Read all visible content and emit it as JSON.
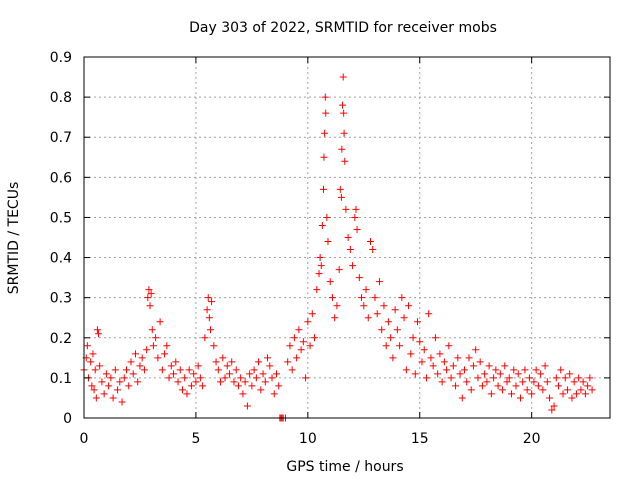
{
  "chart_data": {
    "type": "scatter",
    "title": "Day 303 of 2022, SRMTID for receiver mobs",
    "xlabel": "GPS time / hours",
    "ylabel": "SRMTID / TECUs",
    "xlim": [
      0,
      23.5
    ],
    "ylim": [
      0,
      0.9
    ],
    "grid": true,
    "marker": "+",
    "color": "#ff0000",
    "xticks": [
      {
        "value": 0,
        "label": "0"
      },
      {
        "value": 5,
        "label": "5"
      },
      {
        "value": 10,
        "label": "10"
      },
      {
        "value": 15,
        "label": "15"
      },
      {
        "value": 20,
        "label": "20"
      }
    ],
    "yticks": [
      {
        "value": 0,
        "label": "0"
      },
      {
        "value": 0.1,
        "label": "0.1"
      },
      {
        "value": 0.2,
        "label": "0.2"
      },
      {
        "value": 0.3,
        "label": "0.3"
      },
      {
        "value": 0.4,
        "label": "0.4"
      },
      {
        "value": 0.5,
        "label": "0.5"
      },
      {
        "value": 0.6,
        "label": "0.6"
      },
      {
        "value": 0.7,
        "label": "0.7"
      },
      {
        "value": 0.8,
        "label": "0.8"
      },
      {
        "value": 0.9,
        "label": "0.9"
      }
    ],
    "points": [
      [
        0.0,
        0.12
      ],
      [
        0.1,
        0.15
      ],
      [
        0.15,
        0.18
      ],
      [
        0.2,
        0.1
      ],
      [
        0.3,
        0.14
      ],
      [
        0.35,
        0.08
      ],
      [
        0.4,
        0.16
      ],
      [
        0.45,
        0.07
      ],
      [
        0.5,
        0.12
      ],
      [
        0.55,
        0.05
      ],
      [
        0.6,
        0.22
      ],
      [
        0.65,
        0.21
      ],
      [
        0.7,
        0.13
      ],
      [
        0.8,
        0.09
      ],
      [
        0.9,
        0.06
      ],
      [
        1.0,
        0.11
      ],
      [
        1.1,
        0.08
      ],
      [
        1.2,
        0.1
      ],
      [
        1.3,
        0.05
      ],
      [
        1.4,
        0.12
      ],
      [
        1.5,
        0.07
      ],
      [
        1.6,
        0.09
      ],
      [
        1.7,
        0.04
      ],
      [
        1.8,
        0.1
      ],
      [
        1.9,
        0.12
      ],
      [
        2.0,
        0.08
      ],
      [
        2.1,
        0.14
      ],
      [
        2.2,
        0.11
      ],
      [
        2.3,
        0.16
      ],
      [
        2.4,
        0.09
      ],
      [
        2.5,
        0.13
      ],
      [
        2.6,
        0.15
      ],
      [
        2.7,
        0.12
      ],
      [
        2.8,
        0.17
      ],
      [
        2.85,
        0.3
      ],
      [
        2.9,
        0.32
      ],
      [
        2.95,
        0.28
      ],
      [
        3.0,
        0.31
      ],
      [
        3.05,
        0.22
      ],
      [
        3.1,
        0.18
      ],
      [
        3.2,
        0.2
      ],
      [
        3.3,
        0.15
      ],
      [
        3.4,
        0.24
      ],
      [
        3.5,
        0.12
      ],
      [
        3.6,
        0.16
      ],
      [
        3.7,
        0.18
      ],
      [
        3.8,
        0.1
      ],
      [
        3.9,
        0.13
      ],
      [
        4.0,
        0.11
      ],
      [
        4.1,
        0.14
      ],
      [
        4.2,
        0.09
      ],
      [
        4.3,
        0.12
      ],
      [
        4.4,
        0.07
      ],
      [
        4.5,
        0.1
      ],
      [
        4.6,
        0.06
      ],
      [
        4.7,
        0.12
      ],
      [
        4.8,
        0.08
      ],
      [
        4.9,
        0.11
      ],
      [
        5.0,
        0.09
      ],
      [
        5.1,
        0.13
      ],
      [
        5.2,
        0.1
      ],
      [
        5.3,
        0.08
      ],
      [
        5.4,
        0.2
      ],
      [
        5.5,
        0.27
      ],
      [
        5.55,
        0.3
      ],
      [
        5.6,
        0.25
      ],
      [
        5.65,
        0.22
      ],
      [
        5.7,
        0.29
      ],
      [
        5.8,
        0.18
      ],
      [
        5.9,
        0.14
      ],
      [
        6.0,
        0.12
      ],
      [
        6.1,
        0.09
      ],
      [
        6.2,
        0.15
      ],
      [
        6.3,
        0.1
      ],
      [
        6.4,
        0.13
      ],
      [
        6.5,
        0.11
      ],
      [
        6.6,
        0.14
      ],
      [
        6.7,
        0.09
      ],
      [
        6.8,
        0.12
      ],
      [
        6.9,
        0.08
      ],
      [
        7.0,
        0.1
      ],
      [
        7.1,
        0.06
      ],
      [
        7.2,
        0.09
      ],
      [
        7.3,
        0.03
      ],
      [
        7.4,
        0.11
      ],
      [
        7.5,
        0.08
      ],
      [
        7.6,
        0.12
      ],
      [
        7.7,
        0.1
      ],
      [
        7.8,
        0.14
      ],
      [
        7.9,
        0.07
      ],
      [
        8.0,
        0.11
      ],
      [
        8.1,
        0.09
      ],
      [
        8.2,
        0.15
      ],
      [
        8.3,
        0.13
      ],
      [
        8.4,
        0.1
      ],
      [
        8.5,
        0.06
      ],
      [
        8.6,
        0.11
      ],
      [
        8.7,
        0.08
      ],
      [
        8.75,
        0.0
      ],
      [
        8.8,
        0.0
      ],
      [
        8.85,
        0.0
      ],
      [
        8.9,
        0.0
      ],
      [
        9.0,
        0.0
      ],
      [
        9.1,
        0.14
      ],
      [
        9.2,
        0.18
      ],
      [
        9.3,
        0.12
      ],
      [
        9.4,
        0.2
      ],
      [
        9.5,
        0.15
      ],
      [
        9.6,
        0.22
      ],
      [
        9.7,
        0.17
      ],
      [
        9.8,
        0.19
      ],
      [
        9.9,
        0.1
      ],
      [
        10.0,
        0.24
      ],
      [
        10.1,
        0.18
      ],
      [
        10.2,
        0.26
      ],
      [
        10.3,
        0.2
      ],
      [
        10.4,
        0.32
      ],
      [
        10.5,
        0.36
      ],
      [
        10.55,
        0.4
      ],
      [
        10.6,
        0.38
      ],
      [
        10.65,
        0.48
      ],
      [
        10.7,
        0.57
      ],
      [
        10.72,
        0.65
      ],
      [
        10.75,
        0.71
      ],
      [
        10.78,
        0.8
      ],
      [
        10.8,
        0.76
      ],
      [
        10.85,
        0.5
      ],
      [
        10.9,
        0.44
      ],
      [
        11.0,
        0.34
      ],
      [
        11.1,
        0.3
      ],
      [
        11.2,
        0.25
      ],
      [
        11.3,
        0.28
      ],
      [
        11.4,
        0.37
      ],
      [
        11.45,
        0.57
      ],
      [
        11.5,
        0.55
      ],
      [
        11.52,
        0.67
      ],
      [
        11.55,
        0.78
      ],
      [
        11.58,
        0.85
      ],
      [
        11.6,
        0.76
      ],
      [
        11.62,
        0.71
      ],
      [
        11.65,
        0.64
      ],
      [
        11.7,
        0.52
      ],
      [
        11.8,
        0.45
      ],
      [
        11.9,
        0.42
      ],
      [
        12.0,
        0.38
      ],
      [
        12.1,
        0.5
      ],
      [
        12.15,
        0.52
      ],
      [
        12.2,
        0.47
      ],
      [
        12.3,
        0.35
      ],
      [
        12.4,
        0.3
      ],
      [
        12.5,
        0.28
      ],
      [
        12.6,
        0.32
      ],
      [
        12.7,
        0.25
      ],
      [
        12.8,
        0.44
      ],
      [
        12.9,
        0.42
      ],
      [
        13.0,
        0.3
      ],
      [
        13.1,
        0.26
      ],
      [
        13.2,
        0.34
      ],
      [
        13.3,
        0.22
      ],
      [
        13.4,
        0.28
      ],
      [
        13.5,
        0.18
      ],
      [
        13.6,
        0.24
      ],
      [
        13.7,
        0.2
      ],
      [
        13.8,
        0.15
      ],
      [
        13.9,
        0.27
      ],
      [
        14.0,
        0.22
      ],
      [
        14.1,
        0.18
      ],
      [
        14.2,
        0.3
      ],
      [
        14.3,
        0.25
      ],
      [
        14.4,
        0.12
      ],
      [
        14.5,
        0.28
      ],
      [
        14.6,
        0.16
      ],
      [
        14.7,
        0.2
      ],
      [
        14.8,
        0.11
      ],
      [
        14.9,
        0.24
      ],
      [
        15.0,
        0.19
      ],
      [
        15.1,
        0.14
      ],
      [
        15.2,
        0.17
      ],
      [
        15.3,
        0.1
      ],
      [
        15.4,
        0.26
      ],
      [
        15.5,
        0.15
      ],
      [
        15.6,
        0.13
      ],
      [
        15.7,
        0.2
      ],
      [
        15.8,
        0.11
      ],
      [
        15.9,
        0.16
      ],
      [
        16.0,
        0.09
      ],
      [
        16.1,
        0.14
      ],
      [
        16.2,
        0.12
      ],
      [
        16.3,
        0.18
      ],
      [
        16.4,
        0.1
      ],
      [
        16.5,
        0.13
      ],
      [
        16.6,
        0.08
      ],
      [
        16.7,
        0.15
      ],
      [
        16.8,
        0.11
      ],
      [
        16.9,
        0.05
      ],
      [
        17.0,
        0.12
      ],
      [
        17.1,
        0.09
      ],
      [
        17.2,
        0.15
      ],
      [
        17.3,
        0.07
      ],
      [
        17.4,
        0.13
      ],
      [
        17.5,
        0.17
      ],
      [
        17.6,
        0.1
      ],
      [
        17.7,
        0.14
      ],
      [
        17.8,
        0.08
      ],
      [
        17.9,
        0.11
      ],
      [
        18.0,
        0.09
      ],
      [
        18.1,
        0.13
      ],
      [
        18.2,
        0.06
      ],
      [
        18.3,
        0.1
      ],
      [
        18.4,
        0.12
      ],
      [
        18.5,
        0.08
      ],
      [
        18.6,
        0.11
      ],
      [
        18.7,
        0.07
      ],
      [
        18.8,
        0.13
      ],
      [
        18.9,
        0.09
      ],
      [
        19.0,
        0.1
      ],
      [
        19.1,
        0.06
      ],
      [
        19.2,
        0.12
      ],
      [
        19.3,
        0.08
      ],
      [
        19.4,
        0.11
      ],
      [
        19.5,
        0.05
      ],
      [
        19.6,
        0.09
      ],
      [
        19.7,
        0.12
      ],
      [
        19.8,
        0.07
      ],
      [
        19.9,
        0.1
      ],
      [
        20.0,
        0.06
      ],
      [
        20.1,
        0.09
      ],
      [
        20.2,
        0.12
      ],
      [
        20.3,
        0.08
      ],
      [
        20.4,
        0.11
      ],
      [
        20.5,
        0.07
      ],
      [
        20.6,
        0.13
      ],
      [
        20.7,
        0.09
      ],
      [
        20.8,
        0.05
      ],
      [
        20.9,
        0.02
      ],
      [
        21.0,
        0.03
      ],
      [
        21.1,
        0.1
      ],
      [
        21.2,
        0.08
      ],
      [
        21.3,
        0.12
      ],
      [
        21.4,
        0.06
      ],
      [
        21.5,
        0.1
      ],
      [
        21.6,
        0.07
      ],
      [
        21.7,
        0.11
      ],
      [
        21.8,
        0.05
      ],
      [
        21.9,
        0.09
      ],
      [
        22.0,
        0.06
      ],
      [
        22.1,
        0.1
      ],
      [
        22.2,
        0.07
      ],
      [
        22.3,
        0.09
      ],
      [
        22.4,
        0.06
      ],
      [
        22.5,
        0.08
      ],
      [
        22.6,
        0.1
      ],
      [
        22.7,
        0.07
      ]
    ]
  }
}
